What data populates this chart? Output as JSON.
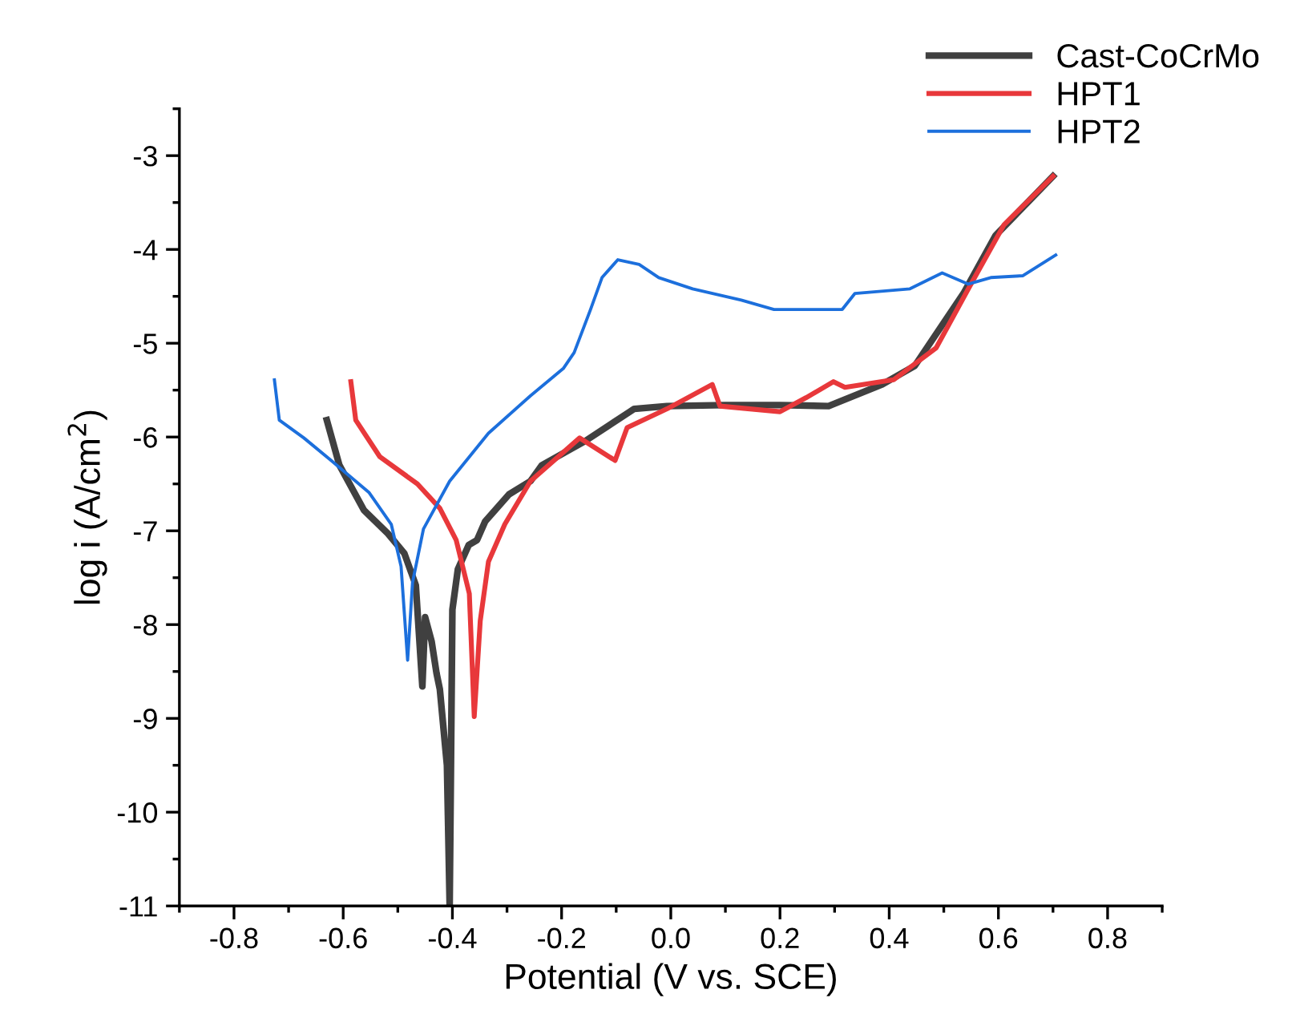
{
  "chart_data": {
    "type": "line",
    "xlabel": "Potential (V vs. SCE)",
    "ylabel": "log i (A/cm$^{2}$)",
    "xlim": [
      -0.9,
      0.9
    ],
    "ylim": [
      -11,
      -2.5
    ],
    "xticks": [
      -0.8,
      -0.6,
      -0.4,
      -0.2,
      {
        "value": 0,
        "label": "0.0"
      },
      0.2,
      0.4,
      0.6,
      0.8
    ],
    "yticks": [
      -11,
      -10,
      -9,
      -8,
      -7,
      -6,
      -5,
      -4,
      -3
    ],
    "legend": "top right",
    "grid": false,
    "line_style": "solid",
    "marker": "none",
    "series": [
      {
        "name": "Cast-CoCrMo",
        "color": "#404040",
        "x": [
          -0.63,
          -0.607,
          -0.562,
          -0.518,
          -0.488,
          -0.467,
          -0.455,
          -0.45,
          -0.438,
          -0.429,
          -0.423,
          -0.41,
          -0.405,
          -0.4,
          -0.39,
          -0.37,
          -0.355,
          -0.34,
          -0.296,
          -0.257,
          -0.236,
          -0.156,
          -0.067,
          -0.007,
          0.1,
          0.2,
          0.289,
          0.387,
          0.447,
          0.536,
          0.595,
          0.7
        ],
        "values": [
          -5.82,
          -6.3,
          -6.78,
          -7.03,
          -7.24,
          -7.58,
          -8.66,
          -7.92,
          -8.18,
          -8.52,
          -8.69,
          -9.5,
          -11,
          -7.84,
          -7.41,
          -7.15,
          -7.1,
          -6.9,
          -6.61,
          -6.47,
          -6.3,
          -6.04,
          -5.7,
          -5.67,
          -5.66,
          -5.66,
          -5.67,
          -5.44,
          -5.24,
          -4.47,
          -3.85,
          -3.22
        ]
      },
      {
        "name": "HPT1",
        "color": "#e8383b",
        "x": [
          -0.586,
          -0.577,
          -0.533,
          -0.464,
          -0.423,
          -0.393,
          -0.369,
          -0.36,
          -0.349,
          -0.334,
          -0.304,
          -0.257,
          -0.167,
          -0.102,
          -0.08,
          -0.007,
          0.076,
          0.09,
          0.2,
          0.248,
          0.298,
          0.319,
          0.408,
          0.486,
          0.545,
          0.61,
          0.7
        ],
        "values": [
          -5.41,
          -5.82,
          -6.21,
          -6.5,
          -6.76,
          -7.1,
          -7.67,
          -8.98,
          -7.96,
          -7.33,
          -6.93,
          -6.47,
          -6.01,
          -6.25,
          -5.9,
          -5.7,
          -5.44,
          -5.67,
          -5.73,
          -5.58,
          -5.41,
          -5.47,
          -5.39,
          -5.05,
          -4.42,
          -3.74,
          -3.22
        ]
      },
      {
        "name": "HPT2",
        "color": "#1c6fdc",
        "x": [
          -0.726,
          -0.717,
          -0.672,
          -0.622,
          -0.553,
          -0.512,
          -0.494,
          -0.482,
          -0.473,
          -0.453,
          -0.405,
          -0.334,
          -0.257,
          -0.197,
          -0.177,
          -0.147,
          -0.126,
          -0.097,
          -0.058,
          -0.022,
          0.04,
          0.129,
          0.189,
          0.314,
          0.337,
          0.438,
          0.497,
          0.545,
          0.586,
          0.645,
          0.705
        ],
        "values": [
          -5.39,
          -5.82,
          -6.01,
          -6.25,
          -6.59,
          -6.93,
          -7.38,
          -8.38,
          -7.55,
          -6.98,
          -6.47,
          -5.96,
          -5.56,
          -5.27,
          -5.1,
          -4.64,
          -4.3,
          -4.11,
          -4.16,
          -4.3,
          -4.42,
          -4.54,
          -4.64,
          -4.64,
          -4.47,
          -4.42,
          -4.25,
          -4.37,
          -4.3,
          -4.28,
          -4.06
        ]
      }
    ]
  }
}
